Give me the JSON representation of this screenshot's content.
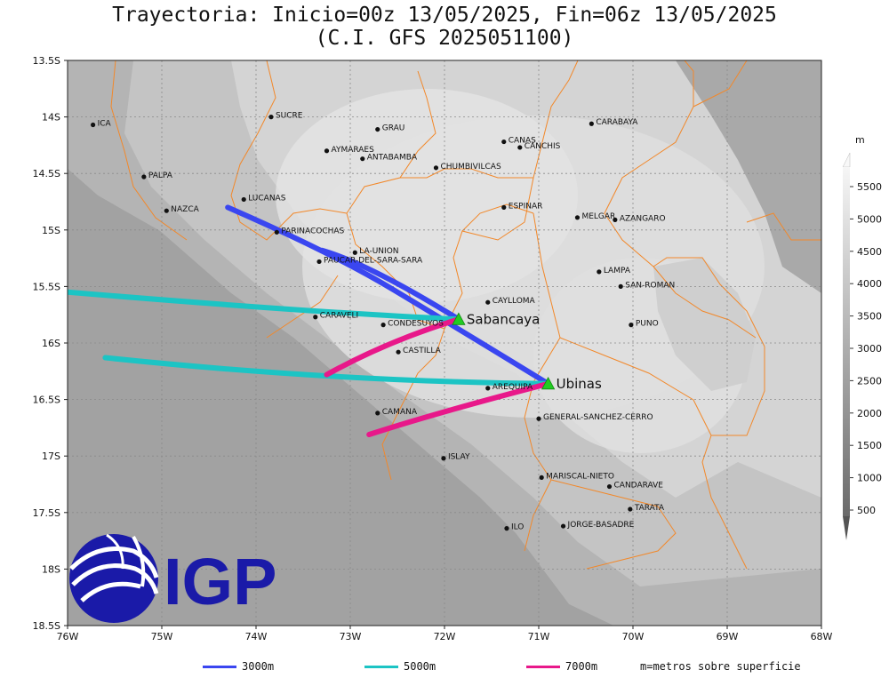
{
  "title_line1": "Trayectoria: Inicio=00z 13/05/2025, Fin=06z 13/05/2025",
  "title_line2": "(C.I. GFS 2025051100)",
  "map": {
    "lon_range": [
      -76,
      -68
    ],
    "lat_range": [
      -18.5,
      -13.5
    ],
    "lon_ticks": [
      {
        "v": -76,
        "label": "76W"
      },
      {
        "v": -75,
        "label": "75W"
      },
      {
        "v": -74,
        "label": "74W"
      },
      {
        "v": -73,
        "label": "73W"
      },
      {
        "v": -72,
        "label": "72W"
      },
      {
        "v": -71,
        "label": "71W"
      },
      {
        "v": -70,
        "label": "70W"
      },
      {
        "v": -69,
        "label": "69W"
      },
      {
        "v": -68,
        "label": "68W"
      }
    ],
    "lat_ticks": [
      {
        "v": -13.5,
        "label": "13.5S"
      },
      {
        "v": -14,
        "label": "14S"
      },
      {
        "v": -14.5,
        "label": "14.5S"
      },
      {
        "v": -15,
        "label": "15S"
      },
      {
        "v": -15.5,
        "label": "15.5S"
      },
      {
        "v": -16,
        "label": "16S"
      },
      {
        "v": -16.5,
        "label": "16.5S"
      },
      {
        "v": -17,
        "label": "17S"
      },
      {
        "v": -17.5,
        "label": "17.5S"
      },
      {
        "v": -18,
        "label": "18S"
      },
      {
        "v": -18.5,
        "label": "18.5S"
      }
    ]
  },
  "cities": [
    {
      "name": "ICA",
      "lon": -75.73,
      "lat": -14.07
    },
    {
      "name": "SUCRE",
      "lon": -73.84,
      "lat": -14.0
    },
    {
      "name": "GRAU",
      "lon": -72.71,
      "lat": -14.11
    },
    {
      "name": "AYMARAES",
      "lon": -73.25,
      "lat": -14.3
    },
    {
      "name": "ANTABAMBA",
      "lon": -72.87,
      "lat": -14.37
    },
    {
      "name": "CANAS",
      "lon": -71.37,
      "lat": -14.22
    },
    {
      "name": "CANCHIS",
      "lon": -71.2,
      "lat": -14.27
    },
    {
      "name": "CARABAYA",
      "lon": -70.44,
      "lat": -14.06
    },
    {
      "name": "CHUMBIVILCAS",
      "lon": -72.09,
      "lat": -14.45
    },
    {
      "name": "PALPA",
      "lon": -75.19,
      "lat": -14.53
    },
    {
      "name": "LUCANAS",
      "lon": -74.13,
      "lat": -14.73
    },
    {
      "name": "NAZCA",
      "lon": -74.95,
      "lat": -14.83
    },
    {
      "name": "ESPINAR",
      "lon": -71.37,
      "lat": -14.8
    },
    {
      "name": "MELGAR",
      "lon": -70.59,
      "lat": -14.89
    },
    {
      "name": "AZANGARO",
      "lon": -70.19,
      "lat": -14.91
    },
    {
      "name": "PARINACOCHAS",
      "lon": -73.78,
      "lat": -15.02
    },
    {
      "name": "LA-UNION",
      "lon": -72.95,
      "lat": -15.2
    },
    {
      "name": "PAUCAR-DEL-SARA-SARA",
      "lon": -73.33,
      "lat": -15.28
    },
    {
      "name": "LAMPA",
      "lon": -70.36,
      "lat": -15.37
    },
    {
      "name": "CAYLLOMA",
      "lon": -71.54,
      "lat": -15.64
    },
    {
      "name": "SAN-ROMAN",
      "lon": -70.13,
      "lat": -15.5
    },
    {
      "name": "CARAVELI",
      "lon": -73.37,
      "lat": -15.77
    },
    {
      "name": "CONDESUYOS",
      "lon": -72.65,
      "lat": -15.84
    },
    {
      "name": "PUNO",
      "lon": -70.02,
      "lat": -15.84
    },
    {
      "name": "CASTILLA",
      "lon": -72.49,
      "lat": -16.08
    },
    {
      "name": "AREQUIPA",
      "lon": -71.54,
      "lat": -16.4
    },
    {
      "name": "CAMANA",
      "lon": -72.71,
      "lat": -16.62
    },
    {
      "name": "GENERAL-SANCHEZ-CERRO",
      "lon": -71.0,
      "lat": -16.67
    },
    {
      "name": "ISLAY",
      "lon": -72.01,
      "lat": -17.02
    },
    {
      "name": "MARISCAL-NIETO",
      "lon": -70.97,
      "lat": -17.19
    },
    {
      "name": "CANDARAVE",
      "lon": -70.25,
      "lat": -17.27
    },
    {
      "name": "TARATA",
      "lon": -70.03,
      "lat": -17.47
    },
    {
      "name": "ILO",
      "lon": -71.34,
      "lat": -17.64
    },
    {
      "name": "JORGE-BASADRE",
      "lon": -70.74,
      "lat": -17.62
    }
  ],
  "volcanoes": [
    {
      "name": "Sabancaya",
      "lon": -71.85,
      "lat": -15.79
    },
    {
      "name": "Ubinas",
      "lon": -70.9,
      "lat": -16.36
    }
  ],
  "trajectories": [
    {
      "level": "3000m",
      "color": "#3a46f0",
      "points": [
        [
          -71.85,
          -15.79
        ],
        [
          -72.8,
          -15.3
        ],
        [
          -73.3,
          -15.18
        ]
      ]
    },
    {
      "level": "3000m",
      "color": "#3a46f0",
      "points": [
        [
          -70.9,
          -16.36
        ],
        [
          -71.9,
          -15.85
        ],
        [
          -73.2,
          -15.2
        ],
        [
          -74.3,
          -14.8
        ]
      ]
    },
    {
      "level": "5000m",
      "color": "#1cc4c4",
      "points": [
        [
          -71.85,
          -15.79
        ],
        [
          -73.4,
          -15.73
        ],
        [
          -76.0,
          -15.55
        ]
      ]
    },
    {
      "level": "5000m",
      "color": "#1cc4c4",
      "points": [
        [
          -70.9,
          -16.36
        ],
        [
          -73.2,
          -16.34
        ],
        [
          -75.6,
          -16.13
        ]
      ]
    },
    {
      "level": "7000m",
      "color": "#e8188a",
      "points": [
        [
          -71.85,
          -15.79
        ],
        [
          -72.6,
          -15.98
        ],
        [
          -73.25,
          -16.28
        ]
      ]
    },
    {
      "level": "7000m",
      "color": "#e8188a",
      "points": [
        [
          -70.9,
          -16.36
        ],
        [
          -72.1,
          -16.62
        ],
        [
          -72.8,
          -16.81
        ]
      ]
    }
  ],
  "colorbar": {
    "unit": "m",
    "labels": [
      "5500",
      "5000",
      "4500",
      "4000",
      "3500",
      "3000",
      "2500",
      "2000",
      "1500",
      "1000",
      "500"
    ]
  },
  "legend": {
    "items": [
      {
        "label": "3000m",
        "color": "#3a46f0"
      },
      {
        "label": "5000m",
        "color": "#1cc4c4"
      },
      {
        "label": "7000m",
        "color": "#e8188a"
      }
    ],
    "note": "m=metros sobre superficie"
  },
  "logo": {
    "text": "IGP",
    "color": "#1a1aa8"
  }
}
